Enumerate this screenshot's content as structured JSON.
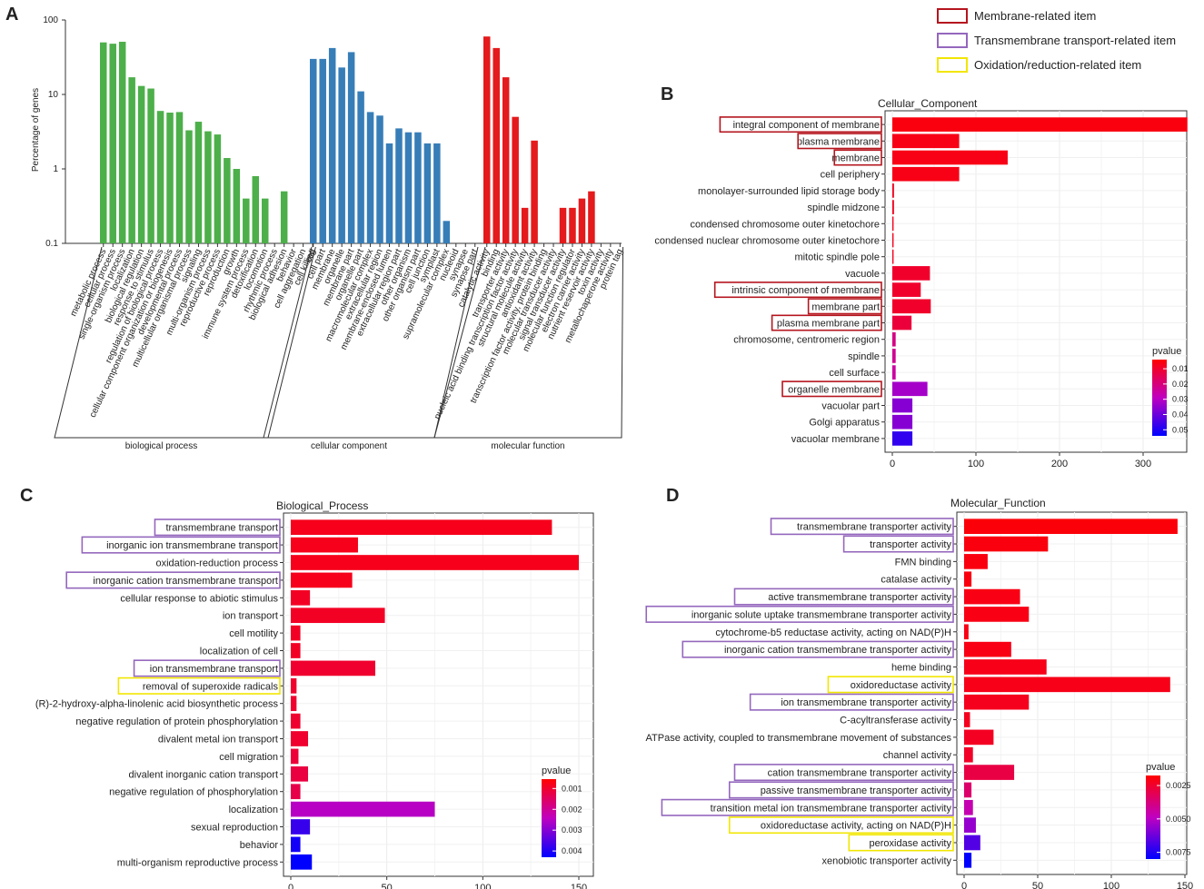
{
  "legend": {
    "items": [
      {
        "label": "Membrane-related item",
        "color": "#b5151e"
      },
      {
        "label": "Transmembrane transport-related item",
        "color": "#9467bd"
      },
      {
        "label": "Oxidation/reduction-related item",
        "color": "#f2e600"
      }
    ]
  },
  "chart_data": [
    {
      "panel": "A",
      "type": "bar",
      "title": "",
      "ylabel": "Percentage of genes",
      "yscale": "log",
      "ylim": [
        0.1,
        100
      ],
      "yticks": [
        "0.1",
        "1",
        "10",
        "100"
      ],
      "groups": [
        {
          "name": "biological process",
          "color": "#4daf4a",
          "categories": [
            "metabolic process",
            "cellular process",
            "single-organism process",
            "localization",
            "biological regulation",
            "response to stimulus",
            "regulation of biological process",
            "cellular component organization or biogenesis",
            "developmental process",
            "multicellular organismal process",
            "signaling",
            "multi-organism process",
            "reproductive process",
            "reproduction",
            "growth",
            "immune system process",
            "detoxification",
            "locomotion",
            "rhythmic process",
            "biological adhesion",
            "behavior",
            "cell aggregation",
            "cell killing"
          ],
          "values": [
            50,
            48,
            51,
            17,
            13,
            12,
            6,
            5.7,
            5.8,
            3.3,
            4.3,
            3.2,
            2.9,
            1.4,
            1.0,
            0.4,
            0.8,
            0.4,
            0,
            0.5,
            0,
            0,
            0
          ]
        },
        {
          "name": "cellular component",
          "color": "#377eb8",
          "categories": [
            "cell",
            "cell part",
            "membrane",
            "organelle",
            "membrane part",
            "organelle part",
            "macromolecular complex",
            "extracellular region",
            "membrane-enclosed lumen",
            "extracellular region part",
            "other organism",
            "other organism part",
            "cell junction",
            "symplast",
            "supramolecular complex",
            "nucleoid",
            "synapse",
            "synapse part"
          ],
          "values": [
            30,
            30,
            42,
            23,
            37,
            11,
            5.8,
            5.2,
            2.2,
            3.5,
            3.1,
            3.1,
            2.2,
            2.2,
            0.2,
            0,
            0,
            0
          ]
        },
        {
          "name": "molecular function",
          "color": "#e41a1c",
          "categories": [
            "catalytic activity",
            "binding",
            "transporter activity",
            "nucleic acid binding transcription factor activity",
            "structural molecule activity",
            "antioxidant activity",
            "transcription factor activity, protein binding",
            "molecular transducer activity",
            "signal transducer activity",
            "molecular function regulator",
            "electron carrier activity",
            "nutrient reservoir activity",
            "toxin activity",
            "metallochaperone activity",
            "protein tag"
          ],
          "values": [
            60,
            42,
            17,
            5,
            0.3,
            2.4,
            0,
            0,
            0.3,
            0.3,
            0.4,
            0.5,
            0,
            0,
            0
          ]
        }
      ]
    },
    {
      "panel": "B",
      "type": "bar",
      "orientation": "horizontal",
      "title": "Cellular_Component",
      "xlim": [
        0,
        350
      ],
      "xticks": [
        0,
        100,
        200,
        300
      ],
      "colorbar": {
        "label": "pvalue",
        "ticks": [
          "0.01",
          "0.02",
          "0.03",
          "0.04",
          "0.05"
        ]
      },
      "terms": [
        {
          "label": "integral component of membrane",
          "value": 353,
          "highlight": "membrane"
        },
        {
          "label": "plasma membrane",
          "value": 80,
          "highlight": "membrane"
        },
        {
          "label": "membrane",
          "value": 138,
          "highlight": "membrane"
        },
        {
          "label": "cell periphery",
          "value": 80,
          "highlight": ""
        },
        {
          "label": "monolayer-surrounded lipid storage body",
          "value": 2,
          "highlight": ""
        },
        {
          "label": "spindle midzone",
          "value": 2,
          "highlight": ""
        },
        {
          "label": "condensed chromosome outer kinetochore",
          "value": 1.5,
          "highlight": ""
        },
        {
          "label": "condensed nuclear chromosome outer kinetochore",
          "value": 1.5,
          "highlight": ""
        },
        {
          "label": "mitotic spindle pole",
          "value": 1.5,
          "highlight": ""
        },
        {
          "label": "vacuole",
          "value": 45,
          "highlight": ""
        },
        {
          "label": "intrinsic component of membrane",
          "value": 34,
          "highlight": "membrane"
        },
        {
          "label": "membrane part",
          "value": 46,
          "highlight": "membrane"
        },
        {
          "label": "plasma membrane part",
          "value": 23,
          "highlight": "membrane"
        },
        {
          "label": "chromosome, centromeric region",
          "value": 4,
          "highlight": ""
        },
        {
          "label": "spindle",
          "value": 4,
          "highlight": ""
        },
        {
          "label": "cell surface",
          "value": 4,
          "highlight": ""
        },
        {
          "label": "organelle membrane",
          "value": 42,
          "highlight": "membrane"
        },
        {
          "label": "vacuolar part",
          "value": 24,
          "highlight": ""
        },
        {
          "label": "Golgi apparatus",
          "value": 24,
          "highlight": ""
        },
        {
          "label": "vacuolar membrane",
          "value": 24,
          "highlight": ""
        }
      ],
      "pvalues": [
        0.002,
        0.003,
        0.003,
        0.003,
        0.004,
        0.004,
        0.004,
        0.004,
        0.004,
        0.006,
        0.006,
        0.006,
        0.008,
        0.018,
        0.02,
        0.022,
        0.03,
        0.034,
        0.034,
        0.046
      ]
    },
    {
      "panel": "C",
      "type": "bar",
      "orientation": "horizontal",
      "title": "Biological_Process",
      "xlim": [
        0,
        150
      ],
      "xticks": [
        0,
        50,
        100,
        150
      ],
      "colorbar": {
        "label": "pvalue",
        "ticks": [
          "0.001",
          "0.002",
          "0.003",
          "0.004"
        ]
      },
      "terms": [
        {
          "label": "transmembrane transport",
          "value": 136,
          "highlight": "transport"
        },
        {
          "label": "inorganic ion transmembrane transport",
          "value": 35,
          "highlight": "transport"
        },
        {
          "label": "oxidation-reduction process",
          "value": 150,
          "highlight": ""
        },
        {
          "label": "inorganic cation transmembrane transport",
          "value": 32,
          "highlight": "transport"
        },
        {
          "label": "cellular response to abiotic stimulus",
          "value": 10,
          "highlight": ""
        },
        {
          "label": "ion transport",
          "value": 49,
          "highlight": ""
        },
        {
          "label": "cell motility",
          "value": 5,
          "highlight": ""
        },
        {
          "label": "localization of cell",
          "value": 5,
          "highlight": ""
        },
        {
          "label": "ion transmembrane transport",
          "value": 44,
          "highlight": "transport"
        },
        {
          "label": "removal of superoxide radicals",
          "value": 3,
          "highlight": "redox"
        },
        {
          "label": "(R)-2-hydroxy-alpha-linolenic acid biosynthetic process",
          "value": 3,
          "highlight": ""
        },
        {
          "label": "negative regulation of protein phosphorylation",
          "value": 5,
          "highlight": ""
        },
        {
          "label": "divalent metal ion transport",
          "value": 9,
          "highlight": ""
        },
        {
          "label": "cell migration",
          "value": 4,
          "highlight": ""
        },
        {
          "label": "divalent inorganic cation transport",
          "value": 9,
          "highlight": ""
        },
        {
          "label": "negative regulation of phosphorylation",
          "value": 5,
          "highlight": ""
        },
        {
          "label": "localization",
          "value": 75,
          "highlight": ""
        },
        {
          "label": "sexual reproduction",
          "value": 10,
          "highlight": ""
        },
        {
          "label": "behavior",
          "value": 5,
          "highlight": ""
        },
        {
          "label": "multi-organism reproductive process",
          "value": 11,
          "highlight": ""
        }
      ],
      "pvalues": [
        0.0003,
        0.0003,
        0.0003,
        0.0003,
        0.0004,
        0.0004,
        0.0004,
        0.0004,
        0.0005,
        0.0005,
        0.0005,
        0.0005,
        0.0005,
        0.0006,
        0.0007,
        0.0008,
        0.0022,
        0.0036,
        0.004,
        0.0042
      ]
    },
    {
      "panel": "D",
      "type": "bar",
      "orientation": "horizontal",
      "title": "Molecular_Function",
      "xlim": [
        0,
        150
      ],
      "xticks": [
        0,
        50,
        100,
        150
      ],
      "colorbar": {
        "label": "pvalue",
        "ticks": [
          "0.0025",
          "0.0050",
          "0.0075"
        ]
      },
      "terms": [
        {
          "label": "transmembrane transporter activity",
          "value": 145,
          "highlight": "transport"
        },
        {
          "label": "transporter activity",
          "value": 57,
          "highlight": "transport"
        },
        {
          "label": "FMN binding",
          "value": 16,
          "highlight": ""
        },
        {
          "label": "catalase activity",
          "value": 5,
          "highlight": ""
        },
        {
          "label": "active transmembrane transporter activity",
          "value": 38,
          "highlight": "transport"
        },
        {
          "label": "inorganic solute uptake transmembrane transporter activity",
          "value": 44,
          "highlight": "transport"
        },
        {
          "label": "cytochrome-b5 reductase activity, acting on NAD(P)H",
          "value": 3,
          "highlight": ""
        },
        {
          "label": "inorganic cation transmembrane transporter activity",
          "value": 32,
          "highlight": "transport"
        },
        {
          "label": "heme binding",
          "value": 56,
          "highlight": ""
        },
        {
          "label": "oxidoreductase activity",
          "value": 140,
          "highlight": "redox"
        },
        {
          "label": "ion transmembrane transporter activity",
          "value": 44,
          "highlight": "transport"
        },
        {
          "label": "C-acyltransferase activity",
          "value": 4,
          "highlight": ""
        },
        {
          "label": "ATPase activity, coupled to transmembrane movement of substances",
          "value": 20,
          "highlight": ""
        },
        {
          "label": "channel activity",
          "value": 6,
          "highlight": ""
        },
        {
          "label": "cation transmembrane transporter activity",
          "value": 34,
          "highlight": "transport"
        },
        {
          "label": "passive transmembrane transporter activity",
          "value": 5,
          "highlight": "transport"
        },
        {
          "label": "transition metal ion transmembrane transporter activity",
          "value": 6,
          "highlight": "transport"
        },
        {
          "label": "oxidoreductase activity, acting on NAD(P)H",
          "value": 8,
          "highlight": "redox"
        },
        {
          "label": "peroxidase activity",
          "value": 11,
          "highlight": "redox"
        },
        {
          "label": "xenobiotic transporter activity",
          "value": 5,
          "highlight": ""
        }
      ],
      "pvalues": [
        0.0002,
        0.0003,
        0.0003,
        0.0003,
        0.0004,
        0.0004,
        0.0004,
        0.0004,
        0.0005,
        0.0005,
        0.0006,
        0.0006,
        0.0007,
        0.0008,
        0.0014,
        0.0022,
        0.0036,
        0.0048,
        0.0062,
        0.0082
      ]
    }
  ],
  "panel_labels": [
    "A",
    "B",
    "C",
    "D"
  ],
  "colors": {
    "membrane_box": "#b5151e",
    "transport_box": "#9467bd",
    "redox_box": "#f2e600",
    "grid": "#ebebeb",
    "pvalue_low": "#ff0000",
    "pvalue_mid": "#c000c0",
    "pvalue_high": "#0000ff"
  }
}
